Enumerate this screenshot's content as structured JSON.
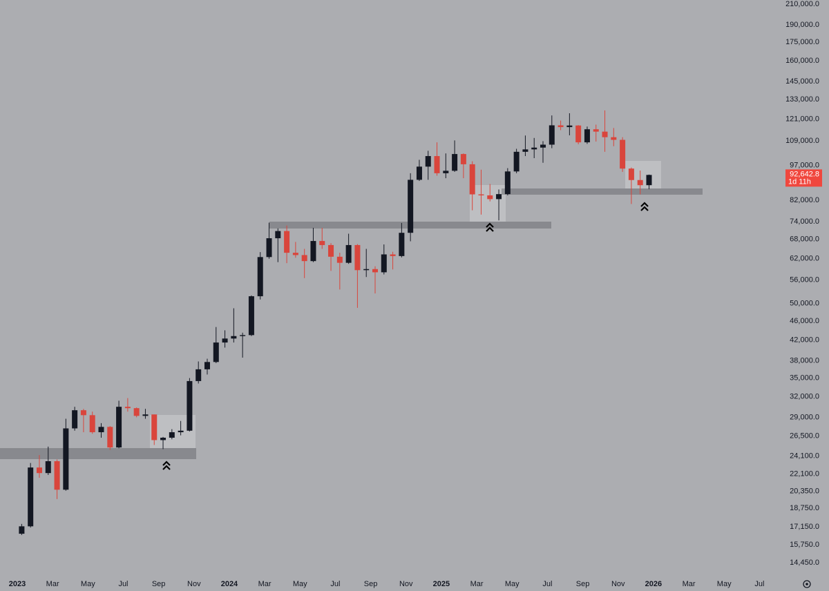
{
  "chart_data": {
    "type": "candlestick",
    "log_scale": true,
    "grid": false,
    "up_color": "#131722",
    "down_color": "#d9453c",
    "ylim": [
      13750,
      214200
    ],
    "yticks": [
      {
        "value": 210000,
        "label": "210,000.0"
      },
      {
        "value": 190000,
        "label": "190,000.0"
      },
      {
        "value": 175000,
        "label": "175,000.0"
      },
      {
        "value": 160000,
        "label": "160,000.0"
      },
      {
        "value": 145000,
        "label": "145,000.0"
      },
      {
        "value": 133000,
        "label": "133,000.0"
      },
      {
        "value": 121000,
        "label": "121,000.0"
      },
      {
        "value": 109000,
        "label": "109,000.0"
      },
      {
        "value": 97000,
        "label": "97,000.0"
      },
      {
        "value": 82000,
        "label": "82,000.0"
      },
      {
        "value": 74000,
        "label": "74,000.0"
      },
      {
        "value": 68000,
        "label": "68,000.0"
      },
      {
        "value": 62000,
        "label": "62,000.0"
      },
      {
        "value": 56000,
        "label": "56,000.0"
      },
      {
        "value": 50000,
        "label": "50,000.0"
      },
      {
        "value": 46000,
        "label": "46,000.0"
      },
      {
        "value": 42000,
        "label": "42,000.0"
      },
      {
        "value": 38000,
        "label": "38,000.0"
      },
      {
        "value": 35000,
        "label": "35,000.0"
      },
      {
        "value": 32000,
        "label": "32,000.0"
      },
      {
        "value": 29000,
        "label": "29,000.0"
      },
      {
        "value": 26500,
        "label": "26,500.0"
      },
      {
        "value": 24100,
        "label": "24,100.0"
      },
      {
        "value": 22100,
        "label": "22,100.0"
      },
      {
        "value": 20350,
        "label": "20,350.0"
      },
      {
        "value": 18750,
        "label": "18,750.0"
      },
      {
        "value": 17150,
        "label": "17,150.0"
      },
      {
        "value": 15750,
        "label": "15,750.0"
      },
      {
        "value": 14450,
        "label": "14,450.0"
      }
    ],
    "categories": [
      "2023",
      null,
      null,
      null,
      "Mar",
      null,
      null,
      null,
      "May",
      null,
      null,
      null,
      "Jul",
      null,
      null,
      null,
      "Sep",
      null,
      null,
      null,
      "Nov",
      null,
      null,
      null,
      "2024",
      null,
      null,
      null,
      "Mar",
      null,
      null,
      null,
      "May",
      null,
      null,
      null,
      "Jul",
      null,
      null,
      null,
      "Sep",
      null,
      null,
      null,
      "Nov",
      null,
      null,
      null,
      "2025",
      null,
      null,
      null,
      "Mar",
      null,
      null,
      null,
      "May",
      null,
      null,
      null,
      "Jul",
      null,
      null,
      null,
      "Sep",
      null,
      null,
      null,
      "Nov",
      null,
      null,
      null,
      "2026",
      null,
      null,
      null,
      "Mar",
      null,
      null,
      null,
      "May",
      null,
      null,
      null,
      "Jul",
      null
    ],
    "open": [
      16600,
      17200,
      22800,
      22200,
      23500,
      20500,
      27500,
      30000,
      29300,
      27000,
      27700,
      25100,
      30500,
      30300,
      29200,
      29400,
      26000,
      26300,
      27000,
      27200,
      34500,
      36500,
      37800,
      41500,
      42300,
      42800,
      43000,
      51800,
      62500,
      68400,
      70800,
      63800,
      63100,
      61300,
      67500,
      66200,
      62600,
      60800,
      66200,
      58700,
      59000,
      58100,
      63300,
      62800,
      70200,
      90500,
      96400,
      101400,
      93400,
      94500,
      102400,
      97500,
      84400,
      84000,
      82500,
      84500,
      94200,
      103500,
      104700,
      105600,
      107100,
      117500,
      116500,
      117400,
      108300,
      115300,
      114000,
      111000,
      109600,
      95500,
      90400,
      88200,
      null,
      null,
      null,
      null,
      null,
      null,
      null,
      null,
      null,
      null,
      null,
      null,
      null,
      null
    ],
    "high": [
      17400,
      23300,
      24200,
      25200,
      23700,
      28800,
      30500,
      30200,
      29800,
      28200,
      27800,
      31400,
      31800,
      30400,
      30200,
      29400,
      26400,
      27400,
      28500,
      35000,
      37900,
      38400,
      44700,
      44000,
      48900,
      43500,
      52000,
      64000,
      73700,
      71700,
      72700,
      67200,
      65000,
      71900,
      71900,
      66800,
      63800,
      69900,
      66500,
      65000,
      59800,
      66400,
      64100,
      73600,
      93400,
      99600,
      104000,
      108300,
      102700,
      109300,
      102700,
      98900,
      95000,
      88700,
      86400,
      95700,
      105000,
      111900,
      110600,
      108900,
      123200,
      120200,
      124500,
      117600,
      116800,
      117900,
      126200,
      116000,
      111000,
      96000,
      94600,
      92800,
      null,
      null,
      null,
      null,
      null,
      null,
      null,
      null,
      null,
      null,
      null,
      null,
      null,
      null
    ],
    "low": [
      16500,
      17100,
      21700,
      22000,
      19600,
      20400,
      27200,
      27000,
      26800,
      26300,
      24800,
      25000,
      29800,
      29000,
      28800,
      25400,
      24900,
      26100,
      26600,
      27100,
      34100,
      35600,
      37600,
      40500,
      41500,
      38600,
      42800,
      51000,
      62000,
      61000,
      60700,
      62300,
      56500,
      61000,
      65000,
      58500,
      53500,
      60500,
      49000,
      56800,
      52500,
      57500,
      58900,
      62400,
      67400,
      90000,
      90500,
      92300,
      91200,
      94000,
      91200,
      78200,
      76600,
      81600,
      74500,
      84000,
      93400,
      101400,
      100400,
      98200,
      105300,
      114800,
      112000,
      107300,
      107500,
      108700,
      103500,
      106300,
      94000,
      80600,
      84400,
      86500,
      null,
      null,
      null,
      null,
      null,
      null,
      null,
      null,
      null,
      null,
      null,
      null,
      null,
      null
    ],
    "close": [
      17200,
      22800,
      22200,
      23500,
      20500,
      27500,
      30000,
      29300,
      27000,
      27700,
      25100,
      30500,
      30300,
      29200,
      29400,
      26000,
      26300,
      27000,
      27200,
      34500,
      36500,
      37800,
      41500,
      42300,
      42800,
      43000,
      51800,
      62500,
      68400,
      70800,
      63800,
      63100,
      61300,
      67500,
      66200,
      62600,
      60800,
      66200,
      58700,
      59000,
      58100,
      63300,
      62800,
      70200,
      90500,
      96400,
      101400,
      93400,
      94500,
      102400,
      97500,
      84400,
      84000,
      82500,
      84500,
      94200,
      103500,
      104700,
      105600,
      107100,
      117500,
      116500,
      117400,
      108300,
      115300,
      114000,
      111000,
      109600,
      95500,
      90400,
      88200,
      92642.8,
      null,
      null,
      null,
      null,
      null,
      null,
      null,
      null,
      null,
      null,
      null,
      null,
      null,
      null
    ],
    "last_price": {
      "value": 92642.8,
      "label": "92,642.8"
    },
    "countdown": "1d 11h"
  }
}
